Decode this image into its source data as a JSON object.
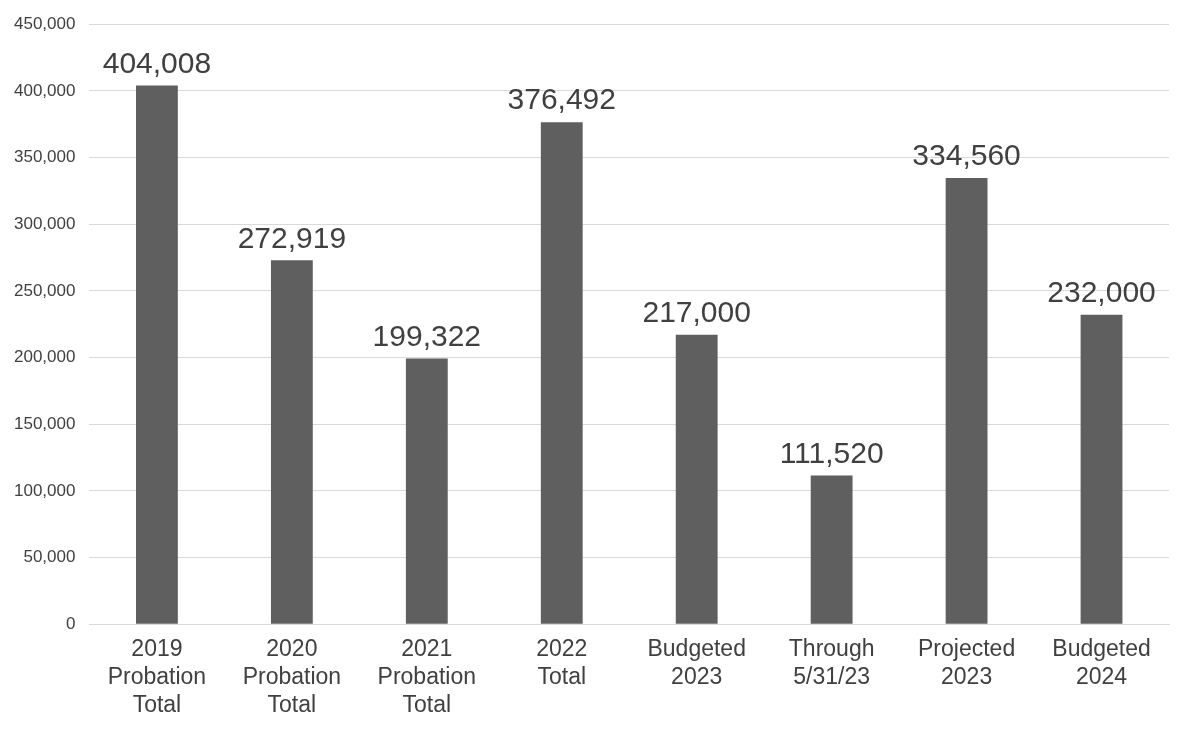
{
  "chart_data": {
    "type": "bar",
    "categories": [
      "2019 Probation Total",
      "2020 Probation Total",
      "2021 Probation Total",
      "2022 Total",
      "Budgeted 2023",
      "Through 5/31/23",
      "Projected 2023",
      "Budgeted 2024"
    ],
    "values": [
      404008,
      272919,
      199322,
      376492,
      217000,
      111520,
      334560,
      232000
    ],
    "value_labels": [
      "404,008",
      "272,919",
      "199,322",
      "376,492",
      "217,000",
      "111,520",
      "334,560",
      "232,000"
    ],
    "color": "#5f5f5f",
    "ylim": [
      0,
      450000
    ],
    "yticks": [
      0,
      {
        "value": 50000,
        "label": "50,000"
      },
      {
        "value": 100000,
        "label": "100,000"
      },
      {
        "value": 150000,
        "label": "150,000"
      },
      {
        "value": 200000,
        "label": "200,000"
      },
      {
        "value": 250000,
        "label": "250,000"
      },
      {
        "value": 300000,
        "label": "300,000"
      },
      {
        "value": 350000,
        "label": "350,000"
      },
      {
        "value": 400000,
        "label": "400,000"
      },
      {
        "value": 450000,
        "label": "450,000"
      }
    ],
    "grid": "y",
    "legend": false
  }
}
